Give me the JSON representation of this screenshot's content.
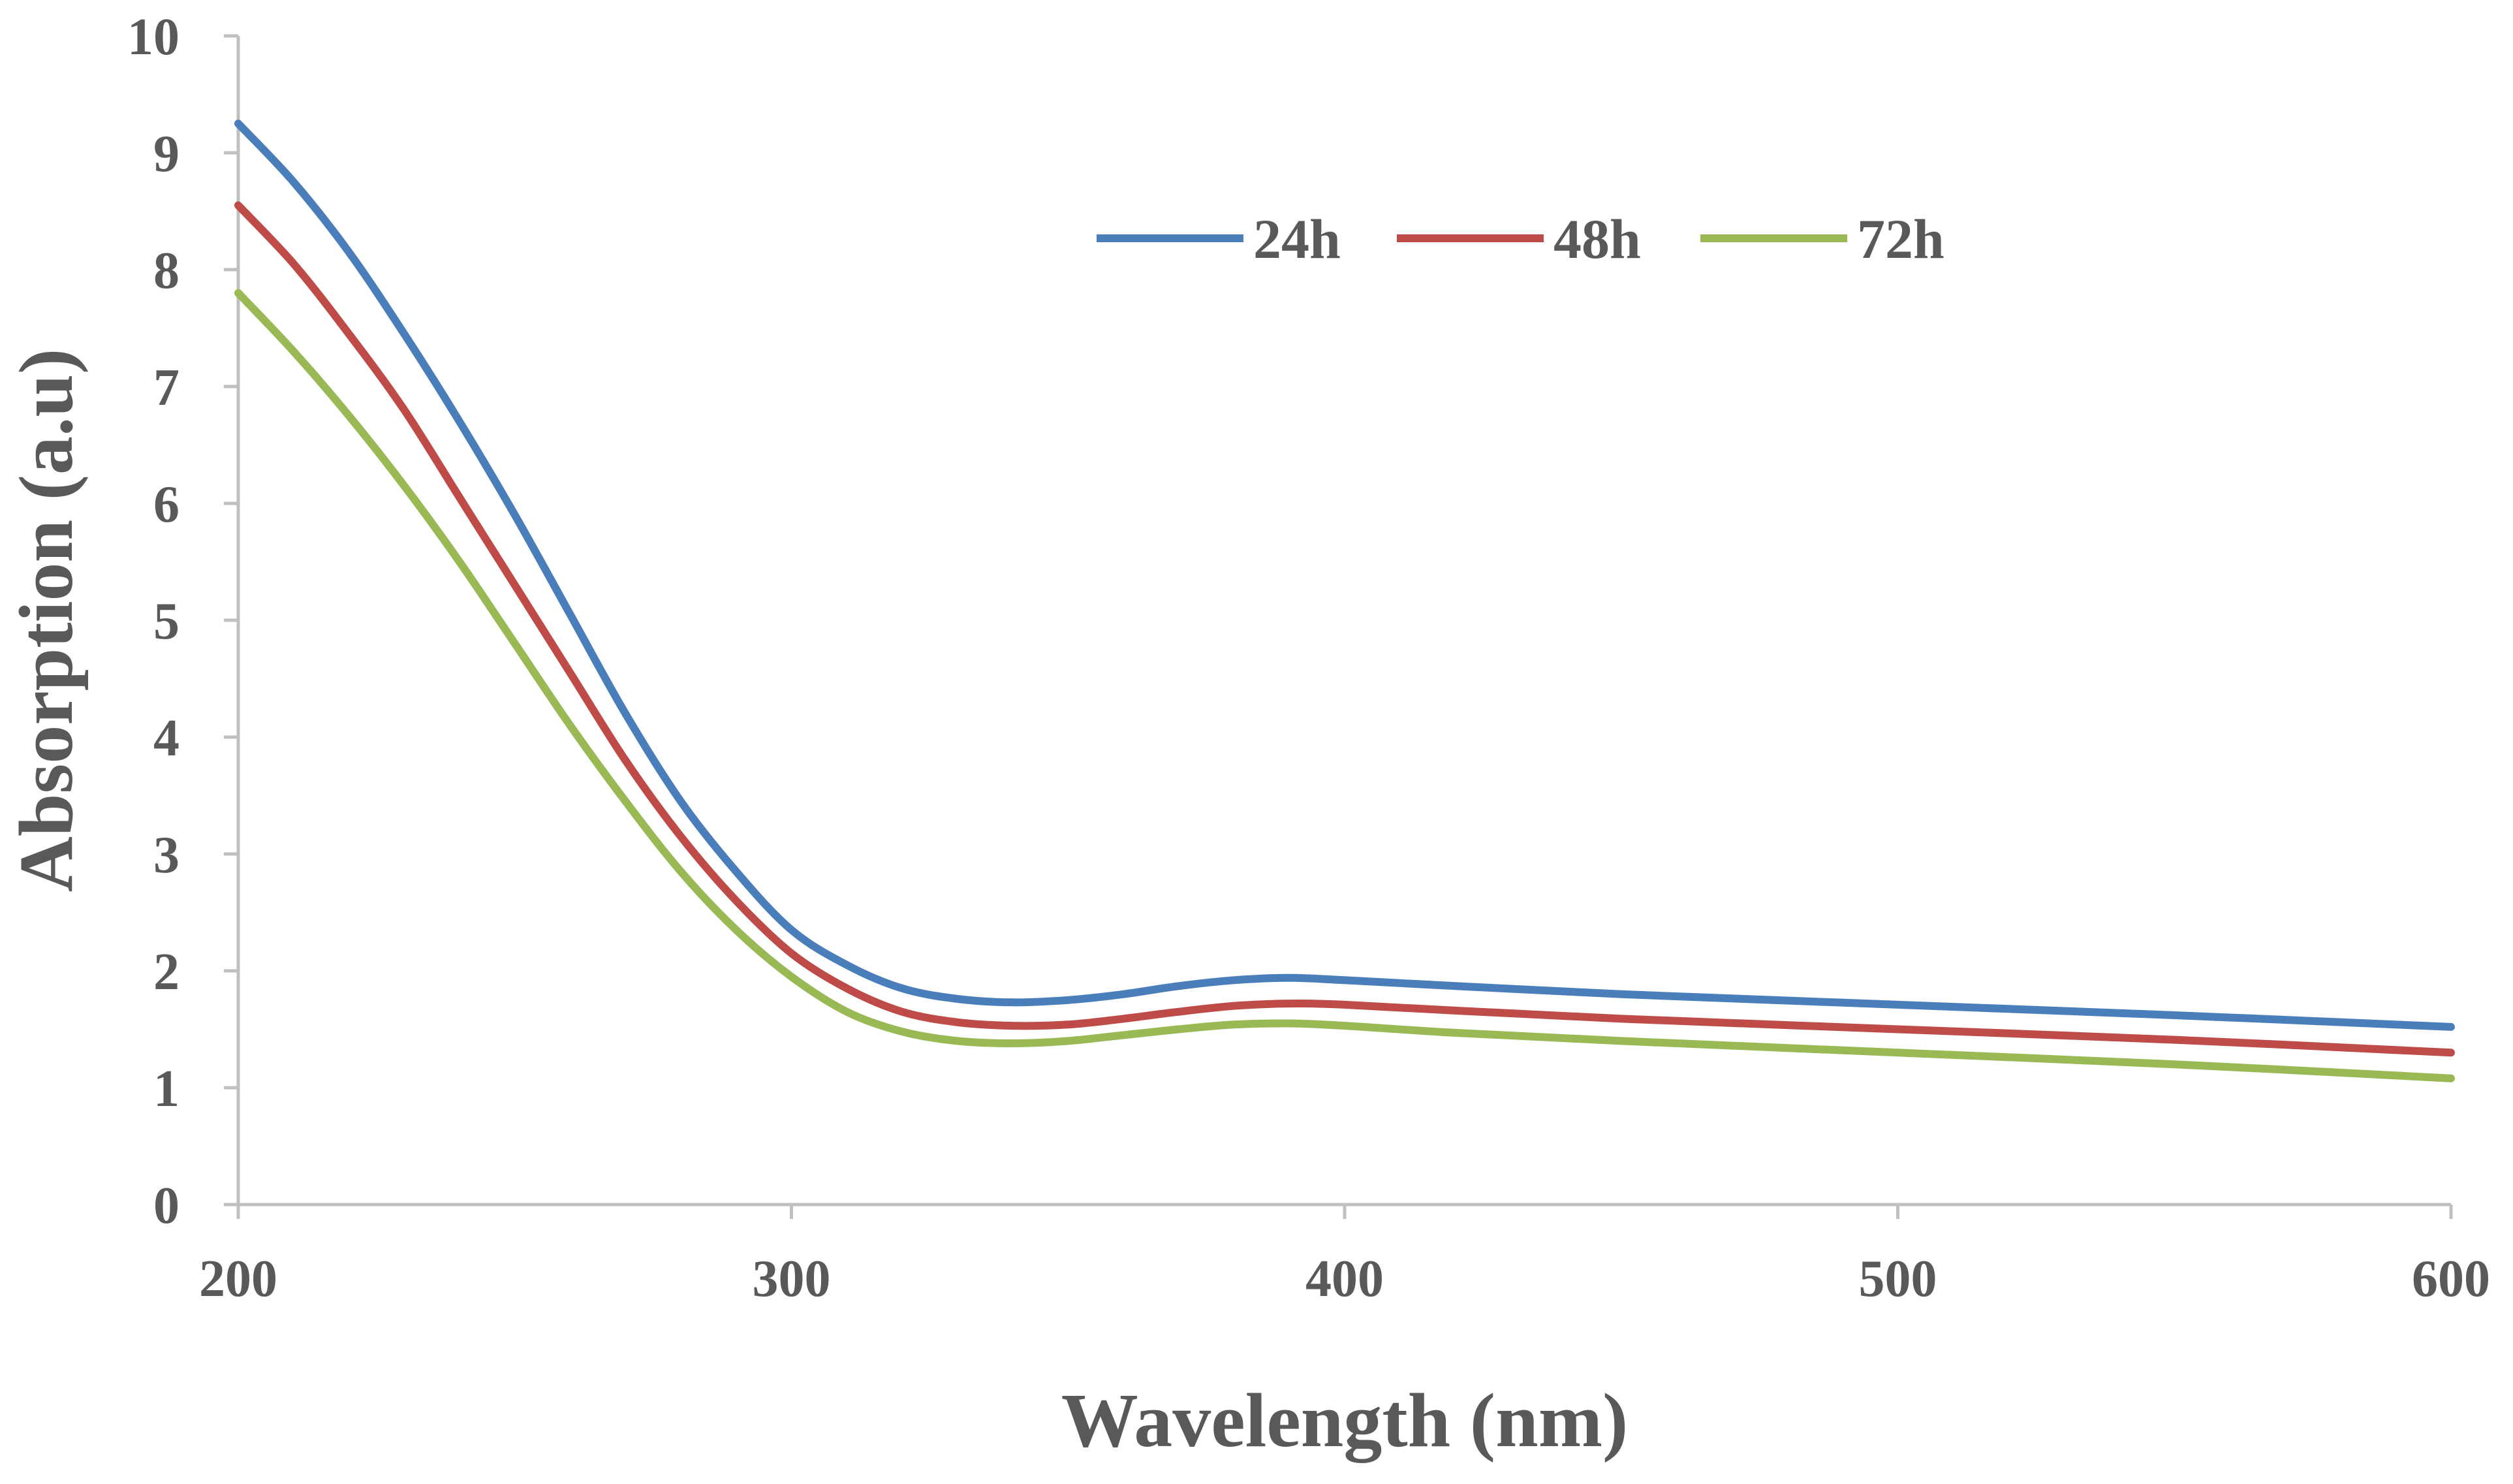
{
  "chart_data": {
    "type": "line",
    "title": "",
    "xlabel": "Wavelength (nm)",
    "ylabel": "Absorption (a.u)",
    "xlim": [
      200,
      600
    ],
    "ylim": [
      0,
      10
    ],
    "xticks": [
      200,
      300,
      400,
      500,
      600
    ],
    "yticks": [
      0,
      1,
      2,
      3,
      4,
      5,
      6,
      7,
      8,
      9,
      10
    ],
    "grid": false,
    "legend": "top-center",
    "series": [
      {
        "name": "24h",
        "color": "#4a7ebb",
        "x": [
          200,
          210,
          220,
          230,
          240,
          250,
          260,
          270,
          280,
          290,
          300,
          310,
          320,
          330,
          340,
          350,
          360,
          370,
          380,
          390,
          400,
          420,
          450,
          500,
          550,
          600
        ],
        "y": [
          9.25,
          8.75,
          8.15,
          7.45,
          6.7,
          5.9,
          5.05,
          4.2,
          3.45,
          2.85,
          2.35,
          2.05,
          1.85,
          1.76,
          1.73,
          1.75,
          1.8,
          1.87,
          1.92,
          1.94,
          1.92,
          1.87,
          1.8,
          1.71,
          1.62,
          1.52
        ]
      },
      {
        "name": "48h",
        "color": "#be4b48",
        "x": [
          200,
          210,
          220,
          230,
          240,
          250,
          260,
          270,
          280,
          290,
          300,
          310,
          320,
          330,
          340,
          350,
          360,
          370,
          380,
          390,
          400,
          420,
          450,
          500,
          550,
          600
        ],
        "y": [
          8.55,
          8.05,
          7.45,
          6.8,
          6.05,
          5.3,
          4.55,
          3.8,
          3.15,
          2.6,
          2.15,
          1.85,
          1.65,
          1.56,
          1.53,
          1.54,
          1.59,
          1.65,
          1.7,
          1.72,
          1.71,
          1.66,
          1.59,
          1.5,
          1.41,
          1.3
        ]
      },
      {
        "name": "72h",
        "color": "#98b954",
        "x": [
          200,
          210,
          220,
          230,
          240,
          250,
          260,
          270,
          280,
          290,
          300,
          310,
          320,
          330,
          340,
          350,
          360,
          370,
          380,
          390,
          400,
          420,
          450,
          500,
          550,
          600
        ],
        "y": [
          7.8,
          7.3,
          6.75,
          6.15,
          5.5,
          4.8,
          4.1,
          3.45,
          2.85,
          2.35,
          1.95,
          1.65,
          1.48,
          1.4,
          1.38,
          1.4,
          1.45,
          1.5,
          1.54,
          1.55,
          1.53,
          1.47,
          1.4,
          1.3,
          1.2,
          1.08
        ]
      }
    ]
  }
}
